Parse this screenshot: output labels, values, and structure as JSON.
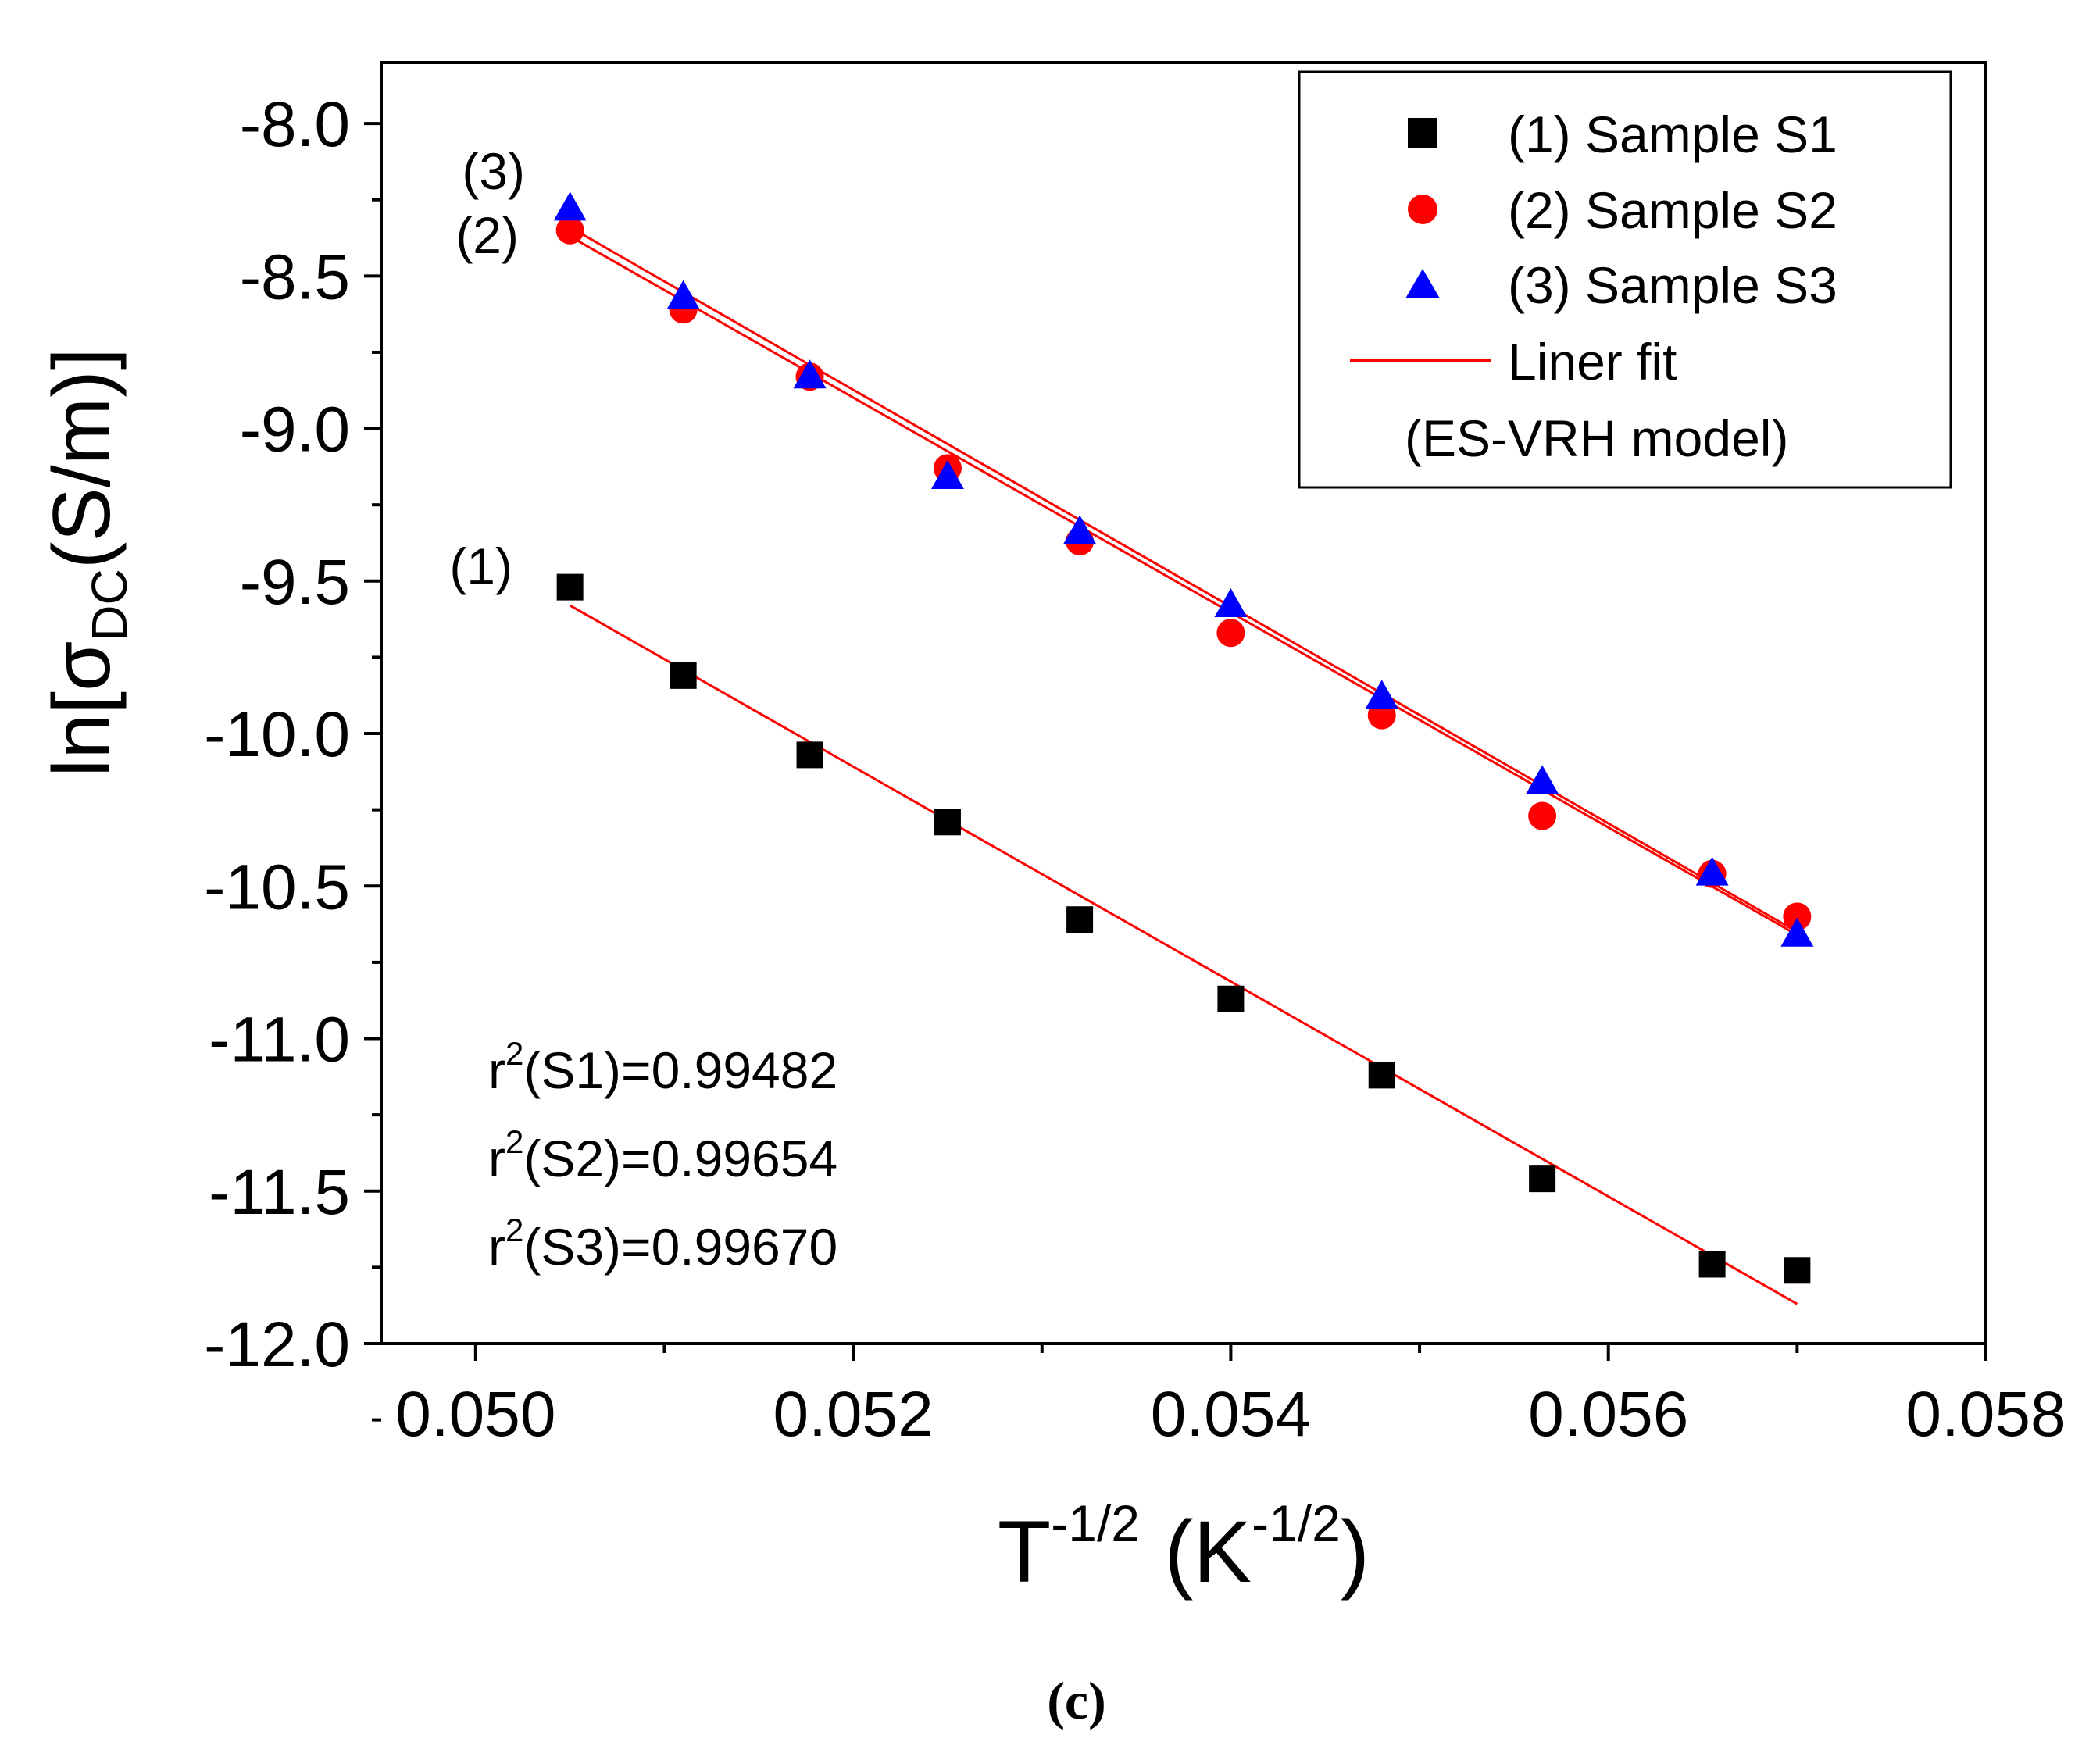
{
  "chart_data": {
    "type": "scatter",
    "x": [
      0.0505,
      0.0511,
      0.05177,
      0.0525,
      0.0532,
      0.054,
      0.0548,
      0.05565,
      0.05655,
      0.057
    ],
    "series": [
      {
        "name": "(1) Sample S1",
        "tag": "(1)",
        "marker": "square",
        "color": "#000000",
        "values": [
          -9.52,
          -9.81,
          -10.07,
          -10.29,
          -10.61,
          -10.87,
          -11.12,
          -11.46,
          -11.74,
          -11.76
        ],
        "fit": {
          "x": [
            0.0505,
            0.057
          ],
          "y": [
            -9.58,
            -11.87
          ]
        }
      },
      {
        "name": "(2) Sample S2",
        "tag": "(2)",
        "marker": "circle",
        "color": "#ff0000",
        "values": [
          -8.35,
          -8.61,
          -8.83,
          -9.13,
          -9.37,
          -9.67,
          -9.94,
          -10.27,
          -10.46,
          -10.6
        ],
        "fit": {
          "x": [
            0.0505,
            0.057
          ],
          "y": [
            -8.37,
            -10.66
          ]
        }
      },
      {
        "name": "(3) Sample S3",
        "tag": "(3)",
        "marker": "triangle",
        "color": "#0000ff",
        "values": [
          -8.28,
          -8.57,
          -8.83,
          -9.16,
          -9.34,
          -9.58,
          -9.88,
          -10.16,
          -10.46,
          -10.66
        ],
        "fit": {
          "x": [
            0.0505,
            0.057
          ],
          "y": [
            -8.34,
            -10.65
          ]
        }
      }
    ],
    "fit_label": "Liner fit",
    "fit_label2": "(ES-VRH model)",
    "fit_color": "#ff0000",
    "xlim": [
      0.0495,
      0.058
    ],
    "ylim": [
      -12.0,
      -7.8
    ],
    "xticks": [
      "0.050",
      "0.052",
      "0.054",
      "0.056",
      "0.058"
    ],
    "xtick_values": [
      0.05,
      0.052,
      0.054,
      0.056,
      0.058
    ],
    "yticks": [
      "-8.0",
      "-8.5",
      "-9.0",
      "-9.5",
      "-10.0",
      "-10.5",
      "-11.0",
      "-11.5",
      "-12.0"
    ],
    "ytick_values": [
      -8.0,
      -8.5,
      -9.0,
      -9.5,
      -10.0,
      -10.5,
      -11.0,
      -11.5,
      -12.0
    ],
    "ylabel": {
      "pre": "ln[σ",
      "sub": "DC",
      "post": "(S/m)]"
    },
    "xlabel": {
      "base": "T",
      "sup": "-1/2",
      "mid": " (K",
      "sup2": "-1/2",
      "post": ")"
    },
    "r2": [
      {
        "pre": "r",
        "sup": "2",
        "post": "(S1)=0.99482"
      },
      {
        "pre": "r",
        "sup": "2",
        "post": "(S2)=0.99654"
      },
      {
        "pre": "r",
        "sup": "2",
        "post": "(S3)=0.99670"
      }
    ],
    "legend_position": "top-right",
    "grid": false
  },
  "caption": "(c)"
}
